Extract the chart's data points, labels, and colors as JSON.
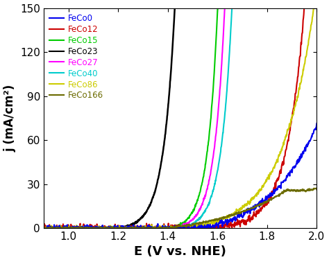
{
  "xlabel": "E (V vs. NHE)",
  "ylabel": "j (mA/cm²)",
  "xlim": [
    0.9,
    2.0
  ],
  "ylim": [
    0,
    150
  ],
  "xticks": [
    1.0,
    1.2,
    1.4,
    1.6,
    1.8,
    2.0
  ],
  "yticks": [
    0,
    30,
    60,
    90,
    120,
    150
  ],
  "legend_labels": [
    "FeCo0",
    "FeCo12",
    "FeCo15",
    "FeCo23",
    "FeCo27",
    "FeCo40",
    "FeCo86",
    "FeCo166"
  ],
  "legend_colors": [
    "#0000EE",
    "#CC0000",
    "#00CC00",
    "#000000",
    "#FF00FF",
    "#00CCCC",
    "#CCCC00",
    "#6B6B00"
  ],
  "curves": {
    "FeCo23": {
      "E0": 1.2,
      "k": 22,
      "clip_x": 1.62,
      "noise": 0.3,
      "clip_y": 150
    },
    "FeCo15": {
      "E0": 1.4,
      "k": 25,
      "clip_x": 1.655,
      "noise": 0.4,
      "clip_y": 150
    },
    "FeCo27": {
      "E0": 1.42,
      "k": 24,
      "clip_x": 1.665,
      "noise": 0.4,
      "clip_y": 150
    },
    "FeCo40": {
      "E0": 1.44,
      "k": 23,
      "clip_x": 1.67,
      "noise": 0.4,
      "clip_y": 150
    },
    "FeCo12": {
      "E0": 1.52,
      "k": 14,
      "peak_x": 1.91,
      "peak_y": 86,
      "drop": 18,
      "noise": 1.2
    },
    "FeCo86": {
      "E0": 1.45,
      "k": 8,
      "peak_x": 1.89,
      "peak_y": 70,
      "drop": 25,
      "noise": 0.8
    },
    "FeCo0": {
      "E0": 1.55,
      "k": 5,
      "clip_x": 2.0,
      "noise": 0.9,
      "clip_y": 150
    },
    "FeCo166": {
      "E0": 1.4,
      "k": 3.5,
      "peak_x": 1.88,
      "peak_y": 26,
      "drop": 22,
      "noise": 0.35
    }
  }
}
